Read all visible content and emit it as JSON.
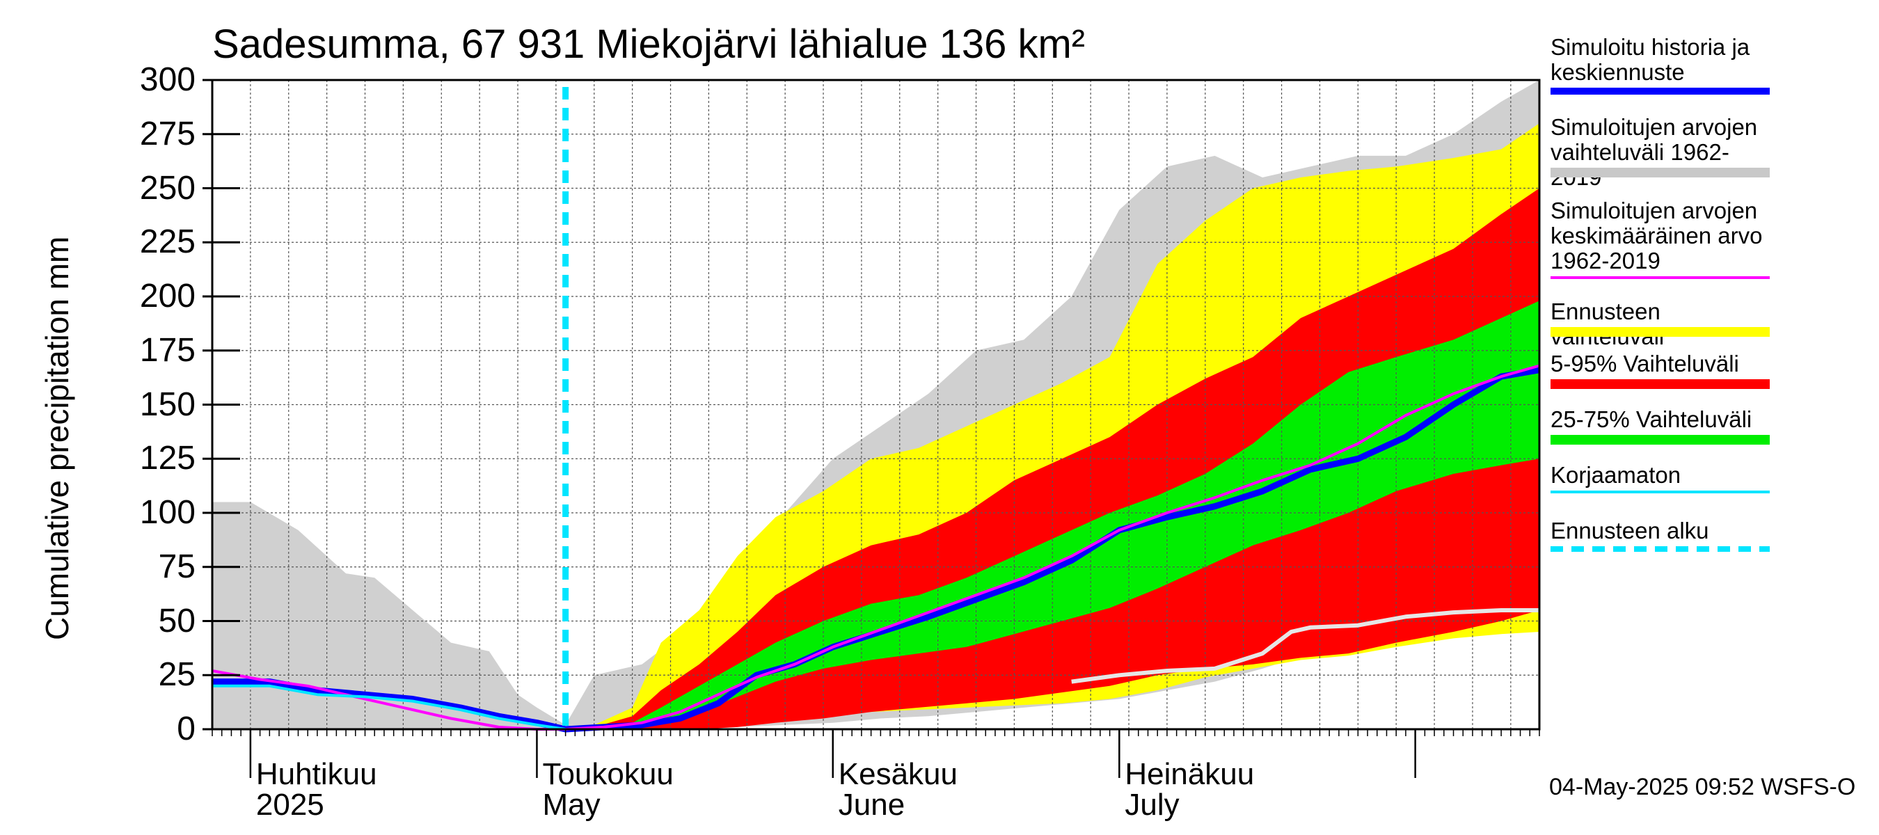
{
  "title": "Sadesumma, 67 931 Miekojärvi lähialue 136 km²",
  "ylabel": "Cumulative precipitation   mm",
  "footer": "04-May-2025 09:52 WSFS-O",
  "x_labels": [
    {
      "fi": "Huhtikuu",
      "en": "2025"
    },
    {
      "fi": "Toukokuu",
      "en": "May"
    },
    {
      "fi": "Kesäkuu",
      "en": "June"
    },
    {
      "fi": "Heinäkuu",
      "en": "July"
    }
  ],
  "legend": [
    {
      "label": "Simuloitu historia ja\nkeskiennuste",
      "color": "#0000ff",
      "style": "thick-line"
    },
    {
      "label": "Simuloitujen arvojen\nvaihteluväli 1962-2019",
      "color": "#c8c8c8",
      "style": "band"
    },
    {
      "label": "Simuloitujen arvojen\nkeskimääräinen arvo\n   1962-2019",
      "color": "#ff00ff",
      "style": "line"
    },
    {
      "label": "Ennusteen vaihteluväli",
      "color": "#ffff00",
      "style": "band"
    },
    {
      "label": "5-95% Vaihteluväli",
      "color": "#ff0000",
      "style": "band"
    },
    {
      "label": "25-75% Vaihteluväli",
      "color": "#00ee00",
      "style": "band"
    },
    {
      "label": "Korjaamaton",
      "color": "#00e5ff",
      "style": "line"
    },
    {
      "label": "Ennusteen alku",
      "color": "#00e5ff",
      "style": "dashed"
    }
  ],
  "chart_data": {
    "type": "area",
    "title": "Sadesumma, 67 931 Miekojärvi lähialue 136 km²",
    "ylabel": "Cumulative precipitation   mm",
    "ylim": [
      0,
      300
    ],
    "yticks": [
      0,
      25,
      50,
      75,
      100,
      125,
      150,
      175,
      200,
      225,
      250,
      275,
      300
    ],
    "xlim": [
      "2025-03-28",
      "2025-08-14"
    ],
    "month_starts": [
      "2025-04-01",
      "2025-05-01",
      "2025-06-01",
      "2025-07-01",
      "2025-08-01"
    ],
    "forecast_start": "2025-05-04",
    "grid": true,
    "legend_position": "right",
    "series": [
      {
        "name": "Simuloitujen arvojen vaihteluväli 1962-2019",
        "kind": "band",
        "color": "#d0d0d0",
        "x": [
          "2025-03-28",
          "2025-04-01",
          "2025-04-06",
          "2025-04-11",
          "2025-04-14",
          "2025-04-18",
          "2025-04-22",
          "2025-04-26",
          "2025-04-29",
          "2025-05-01",
          "2025-05-04",
          "2025-05-07",
          "2025-05-12",
          "2025-05-18",
          "2025-05-22",
          "2025-05-27",
          "2025-06-01",
          "2025-06-06",
          "2025-06-11",
          "2025-06-16",
          "2025-06-21",
          "2025-06-26",
          "2025-07-01",
          "2025-07-06",
          "2025-07-11",
          "2025-07-16",
          "2025-07-21",
          "2025-07-26",
          "2025-07-31",
          "2025-08-05",
          "2025-08-10",
          "2025-08-14"
        ],
        "low": [
          0,
          0,
          0,
          0,
          0,
          0,
          0,
          0,
          0,
          0,
          0,
          0,
          0,
          0,
          1,
          2,
          3,
          5,
          6,
          8,
          10,
          12,
          14,
          18,
          22,
          28,
          35,
          40,
          45,
          50,
          52,
          53
        ],
        "high": [
          105,
          105,
          92,
          72,
          70,
          55,
          40,
          36,
          16,
          10,
          2,
          25,
          30,
          50,
          60,
          100,
          125,
          140,
          155,
          175,
          180,
          200,
          240,
          260,
          265,
          255,
          260,
          265,
          265,
          275,
          290,
          300
        ]
      },
      {
        "name": "Ennusteen vaihteluväli",
        "kind": "band",
        "color": "#ffff00",
        "x": [
          "2025-05-04",
          "2025-05-07",
          "2025-05-11",
          "2025-05-14",
          "2025-05-18",
          "2025-05-22",
          "2025-05-26",
          "2025-05-31",
          "2025-06-05",
          "2025-06-10",
          "2025-06-15",
          "2025-06-20",
          "2025-06-25",
          "2025-06-30",
          "2025-07-05",
          "2025-07-10",
          "2025-07-15",
          "2025-07-20",
          "2025-07-25",
          "2025-07-30",
          "2025-08-05",
          "2025-08-10",
          "2025-08-14"
        ],
        "low": [
          0,
          0,
          0,
          0,
          1,
          3,
          5,
          7,
          8,
          9,
          10,
          11,
          12,
          14,
          18,
          24,
          28,
          32,
          34,
          38,
          42,
          44,
          45
        ],
        "high": [
          0,
          2,
          10,
          40,
          55,
          80,
          98,
          110,
          125,
          130,
          140,
          150,
          160,
          172,
          215,
          235,
          250,
          255,
          258,
          260,
          264,
          268,
          280
        ]
      },
      {
        "name": "5-95% Vaihteluväli",
        "kind": "band",
        "color": "#ff0000",
        "x": [
          "2025-05-04",
          "2025-05-07",
          "2025-05-11",
          "2025-05-14",
          "2025-05-18",
          "2025-05-22",
          "2025-05-26",
          "2025-05-31",
          "2025-06-05",
          "2025-06-10",
          "2025-06-15",
          "2025-06-20",
          "2025-06-25",
          "2025-06-30",
          "2025-07-05",
          "2025-07-10",
          "2025-07-15",
          "2025-07-20",
          "2025-07-25",
          "2025-07-30",
          "2025-08-05",
          "2025-08-10",
          "2025-08-14"
        ],
        "low": [
          0,
          0,
          0,
          0,
          0,
          1,
          3,
          5,
          8,
          10,
          12,
          14,
          17,
          20,
          25,
          28,
          30,
          33,
          35,
          40,
          45,
          50,
          55
        ],
        "high": [
          0,
          1,
          6,
          18,
          30,
          45,
          62,
          75,
          85,
          90,
          100,
          115,
          125,
          135,
          150,
          162,
          172,
          190,
          200,
          210,
          222,
          238,
          250
        ]
      },
      {
        "name": "25-75% Vaihteluväli",
        "kind": "band",
        "color": "#00ee00",
        "x": [
          "2025-05-04",
          "2025-05-07",
          "2025-05-11",
          "2025-05-14",
          "2025-05-18",
          "2025-05-22",
          "2025-05-26",
          "2025-05-31",
          "2025-06-05",
          "2025-06-10",
          "2025-06-15",
          "2025-06-20",
          "2025-06-25",
          "2025-06-30",
          "2025-07-05",
          "2025-07-10",
          "2025-07-15",
          "2025-07-20",
          "2025-07-25",
          "2025-07-30",
          "2025-08-05",
          "2025-08-10",
          "2025-08-14"
        ],
        "low": [
          0,
          0,
          1,
          4,
          8,
          15,
          22,
          28,
          32,
          35,
          38,
          44,
          50,
          56,
          65,
          75,
          85,
          92,
          100,
          110,
          118,
          122,
          125
        ],
        "high": [
          0,
          1,
          3,
          10,
          20,
          30,
          40,
          50,
          58,
          62,
          70,
          80,
          90,
          100,
          108,
          118,
          132,
          150,
          165,
          172,
          180,
          190,
          198
        ]
      },
      {
        "name": "Simuloitu historia ja keskiennuste",
        "kind": "line",
        "color": "#0000ff",
        "width": 9,
        "x": [
          "2025-03-28",
          "2025-04-03",
          "2025-04-08",
          "2025-04-13",
          "2025-04-18",
          "2025-04-23",
          "2025-04-27",
          "2025-05-01",
          "2025-05-04",
          "2025-05-08",
          "2025-05-12",
          "2025-05-16",
          "2025-05-20",
          "2025-05-24",
          "2025-05-28",
          "2025-06-01",
          "2025-06-06",
          "2025-06-11",
          "2025-06-16",
          "2025-06-21",
          "2025-06-26",
          "2025-07-01",
          "2025-07-06",
          "2025-07-11",
          "2025-07-16",
          "2025-07-21",
          "2025-07-26",
          "2025-07-31",
          "2025-08-05",
          "2025-08-10",
          "2025-08-14"
        ],
        "y": [
          22,
          22,
          18,
          16,
          14,
          10,
          6,
          3,
          0,
          1,
          2,
          5,
          12,
          25,
          30,
          38,
          45,
          52,
          60,
          68,
          78,
          92,
          98,
          103,
          110,
          120,
          125,
          135,
          150,
          163,
          166
        ]
      },
      {
        "name": "Simuloitujen arvojen keskimääräinen arvo 1962-2019",
        "kind": "line",
        "color": "#ff00ff",
        "width": 4,
        "x": [
          "2025-03-28",
          "2025-04-02",
          "2025-04-07",
          "2025-04-12",
          "2025-04-17",
          "2025-04-22",
          "2025-04-27",
          "2025-05-01",
          "2025-05-04",
          "2025-05-08",
          "2025-05-12",
          "2025-05-16",
          "2025-05-20",
          "2025-05-24",
          "2025-05-28",
          "2025-06-01",
          "2025-06-06",
          "2025-06-11",
          "2025-06-16",
          "2025-06-21",
          "2025-06-26",
          "2025-07-01",
          "2025-07-06",
          "2025-07-11",
          "2025-07-16",
          "2025-07-21",
          "2025-07-26",
          "2025-07-31",
          "2025-08-05",
          "2025-08-10",
          "2025-08-14"
        ],
        "y": [
          27,
          23,
          20,
          15,
          10,
          5,
          1,
          0,
          0,
          1,
          3,
          8,
          16,
          24,
          30,
          38,
          46,
          54,
          62,
          70,
          80,
          92,
          100,
          107,
          115,
          122,
          132,
          145,
          155,
          163,
          168
        ]
      },
      {
        "name": "Korjaamaton",
        "kind": "line",
        "color": "#00e5ff",
        "width": 4,
        "x": [
          "2025-03-28",
          "2025-04-03",
          "2025-04-08",
          "2025-04-13",
          "2025-04-18",
          "2025-04-23",
          "2025-04-27",
          "2025-05-01",
          "2025-05-04"
        ],
        "y": [
          20,
          20,
          16,
          15,
          13,
          9,
          5,
          2,
          0
        ]
      },
      {
        "name": "",
        "kind": "line",
        "color": "#e6e6e6",
        "width": 6,
        "x": [
          "2025-06-26",
          "2025-07-01",
          "2025-07-06",
          "2025-07-11",
          "2025-07-16",
          "2025-07-19",
          "2025-07-21",
          "2025-07-26",
          "2025-07-31",
          "2025-08-05",
          "2025-08-10",
          "2025-08-14"
        ],
        "y": [
          22,
          25,
          27,
          28,
          35,
          45,
          47,
          48,
          52,
          54,
          55,
          55
        ]
      }
    ]
  }
}
